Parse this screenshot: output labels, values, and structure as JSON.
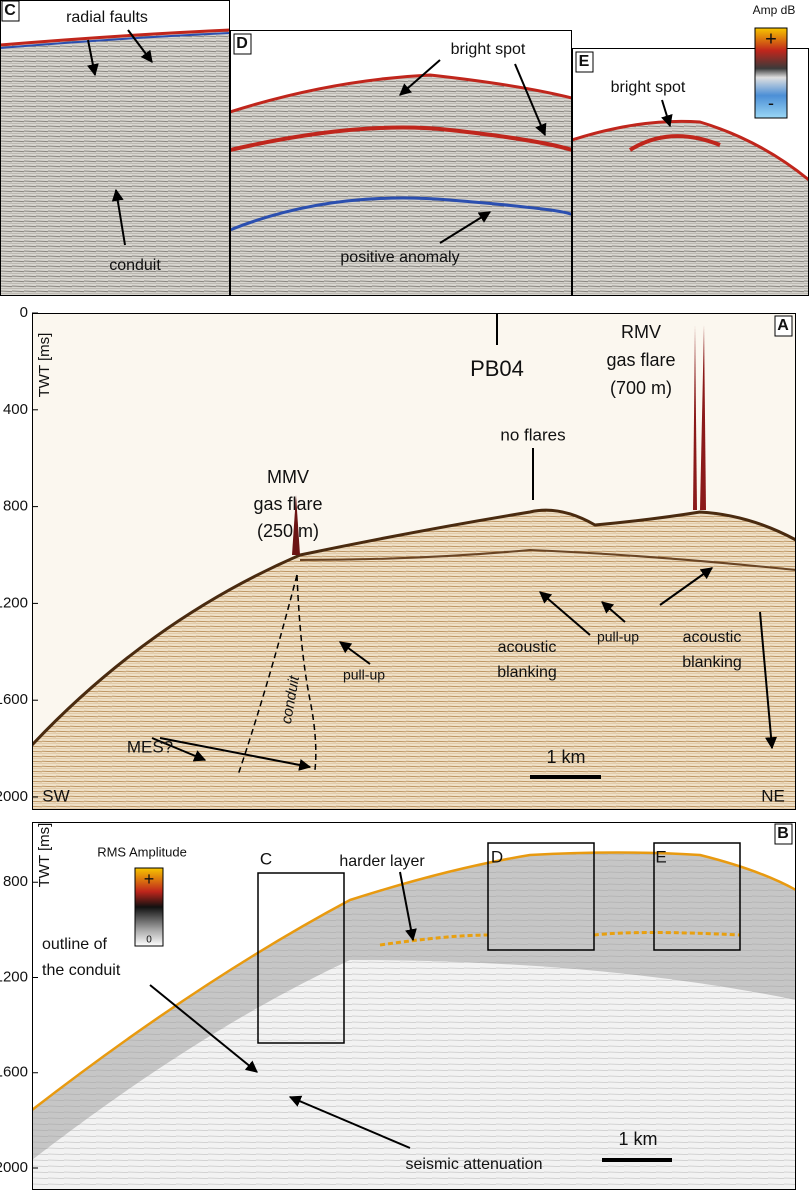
{
  "figure": {
    "panel_c": {
      "label": "C",
      "radial_faults": "radial faults",
      "conduit": "conduit"
    },
    "panel_d": {
      "label": "D",
      "bright_spot": "bright spot",
      "positive_anomaly": "positive anomaly"
    },
    "panel_e": {
      "label": "E",
      "bright_spot": "bright spot"
    },
    "amp_colorbar": {
      "title": "Amp dB",
      "plus": "+",
      "minus": "-"
    },
    "panel_a": {
      "label": "A",
      "axis_label": "TWT [ms]",
      "ylim": [
        0,
        2000
      ],
      "yticks": [
        0,
        400,
        800,
        1200,
        1600,
        2000
      ],
      "line": "PB04",
      "rmv": [
        "RMV",
        "gas flare",
        "(700 m)"
      ],
      "mmv": [
        "MMV",
        "gas flare",
        "(250 m)"
      ],
      "no_flares": "no flares",
      "pull_up": [
        "pull-up",
        "pull-up"
      ],
      "blanking": [
        [
          "acoustic",
          "blanking"
        ],
        [
          "acoustic",
          "blanking"
        ]
      ],
      "conduit": "conduit",
      "mes": "MES?",
      "scale": "1 km",
      "sw": "SW",
      "ne": "NE"
    },
    "panel_b": {
      "label": "B",
      "axis_label": "TWT [ms]",
      "ylim": [
        547,
        2000
      ],
      "yticks": [
        800,
        1200,
        1600,
        2000
      ],
      "rms_colorbar": {
        "title": "RMS Amplitude",
        "plus": "+",
        "zero": "0"
      },
      "harder_layer": "harder layer",
      "boxes": [
        "C",
        "D",
        "E"
      ],
      "outline": [
        "outline of",
        "the conduit"
      ],
      "attenuation": "seismic attenuation",
      "scale": "1 km"
    }
  }
}
